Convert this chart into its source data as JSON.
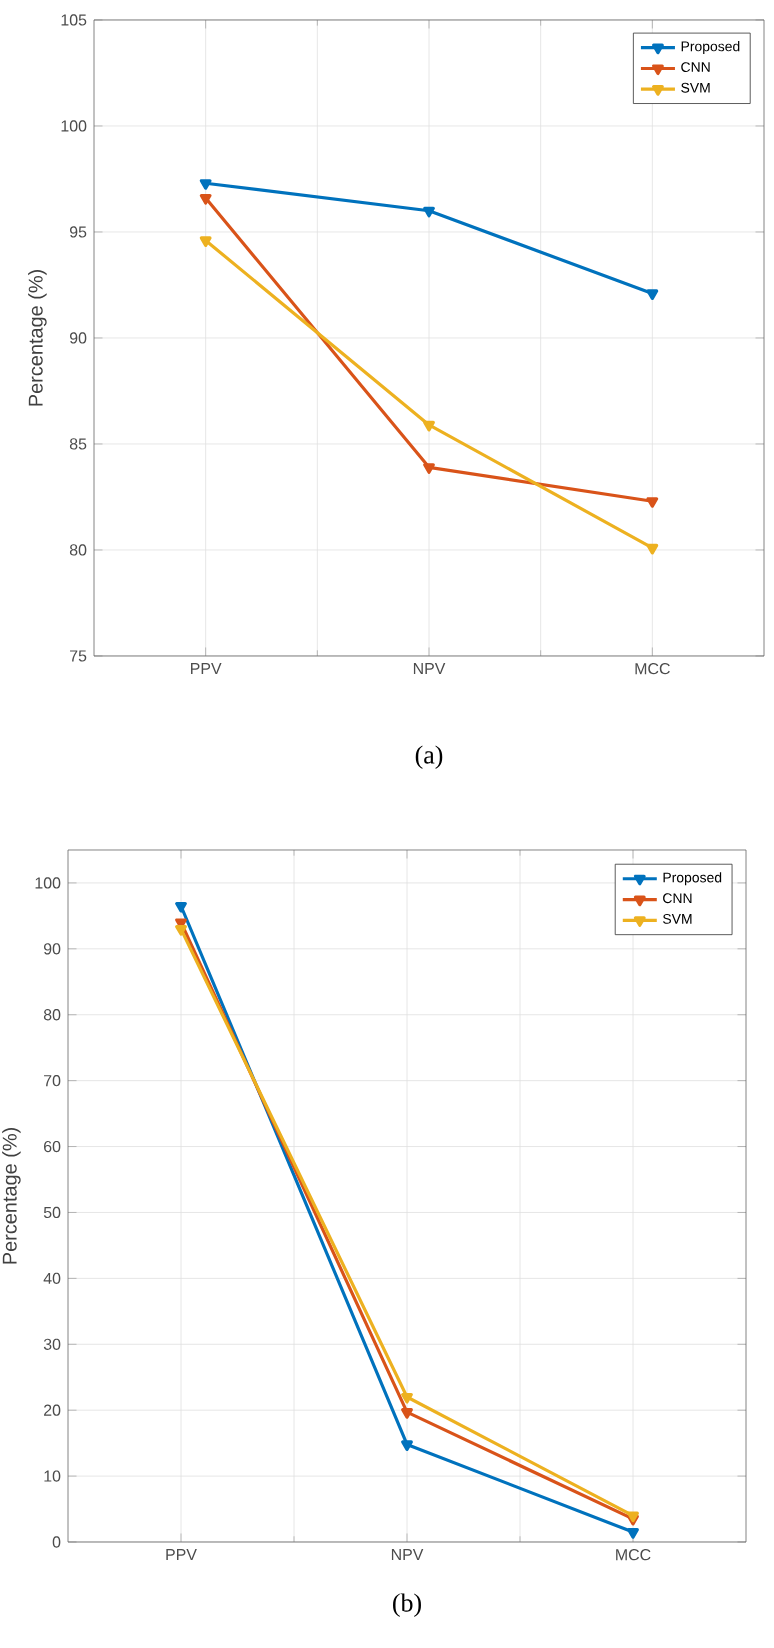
{
  "chart_data": [
    {
      "type": "line",
      "ylabel": "Percentage (%)",
      "categories": [
        "PPV",
        "NPV",
        "MCC"
      ],
      "ylim": [
        75,
        105
      ],
      "yticks": [
        75,
        80,
        85,
        90,
        95,
        100,
        105
      ],
      "grid": true,
      "legend": "top right",
      "marker": "triangle",
      "line_style": "solid",
      "annotations": [
        "(a)"
      ],
      "series": [
        {
          "name": "Proposed",
          "color": "#0072bd",
          "values": [
            97.3,
            96.0,
            92.1
          ]
        },
        {
          "name": "CNN",
          "color": "#d95319",
          "values": [
            96.6,
            83.9,
            82.3
          ]
        },
        {
          "name": "SVM",
          "color": "#edb120",
          "values": [
            94.6,
            85.9,
            80.1
          ]
        }
      ]
    },
    {
      "type": "line",
      "ylabel": "Percentage (%)",
      "categories": [
        "PPV",
        "NPV",
        "MCC"
      ],
      "ylim": [
        0,
        105
      ],
      "yticks": [
        0,
        10,
        20,
        30,
        40,
        50,
        60,
        70,
        80,
        90,
        100
      ],
      "grid": true,
      "legend": "top right",
      "marker": "triangle",
      "line_style": "solid",
      "annotations": [
        "(b)"
      ],
      "series": [
        {
          "name": "Proposed",
          "color": "#0072bd",
          "values": [
            96.5,
            14.8,
            1.5
          ]
        },
        {
          "name": "CNN",
          "color": "#d95319",
          "values": [
            94.0,
            19.7,
            3.5
          ]
        },
        {
          "name": "SVM",
          "color": "#edb120",
          "values": [
            93.0,
            22.0,
            4.0
          ]
        }
      ]
    }
  ]
}
